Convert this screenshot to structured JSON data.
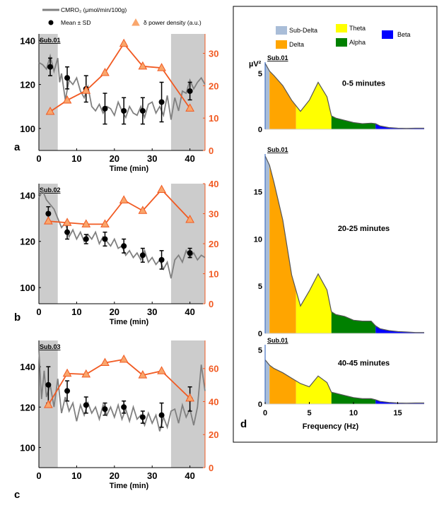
{
  "chart_data": [
    {
      "type": "line",
      "panel_label": "a",
      "subject": "Sub.01",
      "xlabel": "Time (min)",
      "xlim": [
        0,
        44
      ],
      "xticks": [
        0,
        10,
        20,
        30,
        40
      ],
      "ylim_left": [
        90,
        143
      ],
      "yticks_left": [
        100,
        120,
        140
      ],
      "ylim_right": [
        0,
        36
      ],
      "yticks_right": [
        0,
        10,
        20,
        30
      ],
      "shaded": [
        [
          0,
          5
        ],
        [
          35,
          44
        ]
      ],
      "cmro2_trace": [
        [
          0,
          130
        ],
        [
          1,
          129
        ],
        [
          2,
          127
        ],
        [
          3,
          133
        ],
        [
          4,
          126
        ],
        [
          5,
          132
        ],
        [
          5.5,
          121
        ],
        [
          6,
          125
        ],
        [
          7,
          113
        ],
        [
          8,
          122
        ],
        [
          9,
          120
        ],
        [
          10,
          123
        ],
        [
          11,
          117
        ],
        [
          12,
          114
        ],
        [
          13,
          119
        ],
        [
          14,
          110
        ],
        [
          15,
          108
        ],
        [
          16,
          111
        ],
        [
          17,
          107
        ],
        [
          18,
          110
        ],
        [
          19,
          109
        ],
        [
          20,
          106
        ],
        [
          21,
          112
        ],
        [
          22,
          108
        ],
        [
          23,
          105
        ],
        [
          24,
          110
        ],
        [
          25,
          107
        ],
        [
          26,
          106
        ],
        [
          27,
          110
        ],
        [
          28,
          105
        ],
        [
          29,
          111
        ],
        [
          30,
          112
        ],
        [
          31,
          107
        ],
        [
          32,
          110
        ],
        [
          33,
          106
        ],
        [
          34,
          115
        ],
        [
          35,
          104
        ],
        [
          36,
          114
        ],
        [
          37,
          108
        ],
        [
          38,
          117
        ],
        [
          39,
          116
        ],
        [
          40,
          122
        ],
        [
          41,
          118
        ],
        [
          42,
          121
        ],
        [
          43,
          123
        ],
        [
          44,
          120
        ]
      ],
      "mean_points": [
        {
          "x": 3,
          "y": 128,
          "sd": 4
        },
        {
          "x": 7.5,
          "y": 123,
          "sd": 5
        },
        {
          "x": 12.5,
          "y": 118,
          "sd": 6
        },
        {
          "x": 17.5,
          "y": 109,
          "sd": 7
        },
        {
          "x": 22.5,
          "y": 108,
          "sd": 6
        },
        {
          "x": 27.5,
          "y": 108,
          "sd": 6
        },
        {
          "x": 32.5,
          "y": 112,
          "sd": 9
        },
        {
          "x": 40,
          "y": 117,
          "sd": 4
        }
      ],
      "delta_power": [
        {
          "x": 3,
          "y": 12
        },
        {
          "x": 7.5,
          "y": 15.5
        },
        {
          "x": 12.5,
          "y": 18.5
        },
        {
          "x": 17.5,
          "y": 24
        },
        {
          "x": 22.5,
          "y": 33
        },
        {
          "x": 27.5,
          "y": 26
        },
        {
          "x": 32.5,
          "y": 25.5
        },
        {
          "x": 40,
          "y": 13
        }
      ]
    },
    {
      "type": "line",
      "panel_label": "b",
      "subject": "Sub.02",
      "xlabel": "Time (min)",
      "xlim": [
        0,
        44
      ],
      "xticks": [
        0,
        10,
        20,
        30,
        40
      ],
      "ylim_left": [
        93,
        145
      ],
      "yticks_left": [
        100,
        120,
        140
      ],
      "ylim_right": [
        0,
        40
      ],
      "yticks_right": [
        0,
        10,
        20,
        30,
        40
      ],
      "shaded": [
        [
          0,
          5
        ],
        [
          35,
          44
        ]
      ],
      "cmro2_trace": [
        [
          0,
          139
        ],
        [
          1,
          142
        ],
        [
          2,
          138
        ],
        [
          3,
          136
        ],
        [
          4,
          134
        ],
        [
          5,
          130
        ],
        [
          6,
          126
        ],
        [
          7,
          128
        ],
        [
          8,
          122
        ],
        [
          9,
          125
        ],
        [
          10,
          121
        ],
        [
          11,
          124
        ],
        [
          12,
          120
        ],
        [
          13,
          123
        ],
        [
          14,
          121
        ],
        [
          15,
          124
        ],
        [
          16,
          119
        ],
        [
          17,
          122
        ],
        [
          18,
          120
        ],
        [
          19,
          118
        ],
        [
          20,
          121
        ],
        [
          21,
          117
        ],
        [
          22,
          118
        ],
        [
          23,
          114
        ],
        [
          24,
          116
        ],
        [
          25,
          113
        ],
        [
          26,
          115
        ],
        [
          27,
          112
        ],
        [
          28,
          116
        ],
        [
          29,
          111
        ],
        [
          30,
          113
        ],
        [
          31,
          110
        ],
        [
          32,
          112
        ],
        [
          33,
          108
        ],
        [
          34,
          111
        ],
        [
          35,
          104
        ],
        [
          36,
          112
        ],
        [
          37,
          114
        ],
        [
          38,
          111
        ],
        [
          39,
          116
        ],
        [
          40,
          113
        ],
        [
          41,
          115
        ],
        [
          42,
          112
        ],
        [
          43,
          114
        ],
        [
          44,
          113
        ]
      ],
      "mean_points": [
        {
          "x": 2.5,
          "y": 132,
          "sd": 3
        },
        {
          "x": 7.5,
          "y": 124,
          "sd": 3
        },
        {
          "x": 12.5,
          "y": 121,
          "sd": 2
        },
        {
          "x": 17.5,
          "y": 121,
          "sd": 3
        },
        {
          "x": 22.5,
          "y": 118,
          "sd": 3
        },
        {
          "x": 27.5,
          "y": 114,
          "sd": 3
        },
        {
          "x": 32.5,
          "y": 112,
          "sd": 4
        },
        {
          "x": 40,
          "y": 115,
          "sd": 2
        }
      ],
      "delta_power": [
        {
          "x": 2.5,
          "y": 27.5
        },
        {
          "x": 7.5,
          "y": 27
        },
        {
          "x": 12.5,
          "y": 26.5
        },
        {
          "x": 17.5,
          "y": 26.5
        },
        {
          "x": 22.5,
          "y": 34.5
        },
        {
          "x": 27.5,
          "y": 31
        },
        {
          "x": 32.5,
          "y": 38
        },
        {
          "x": 40,
          "y": 28
        }
      ]
    },
    {
      "type": "line",
      "panel_label": "c",
      "subject": "Sub.03",
      "xlabel": "Time (min)",
      "xlim": [
        0,
        44
      ],
      "xticks": [
        0,
        10,
        20,
        30,
        40
      ],
      "ylim_left": [
        90,
        153
      ],
      "yticks_left": [
        100,
        120,
        140
      ],
      "ylim_right": [
        0,
        77
      ],
      "yticks_right": [
        0,
        20,
        40,
        60
      ],
      "shaded": [
        [
          0,
          5
        ],
        [
          35,
          44
        ]
      ],
      "cmro2_trace": [
        [
          0,
          148
        ],
        [
          0.7,
          124
        ],
        [
          1.4,
          138
        ],
        [
          2,
          125
        ],
        [
          3,
          131
        ],
        [
          4,
          120
        ],
        [
          5,
          134
        ],
        [
          6,
          117
        ],
        [
          7,
          125
        ],
        [
          8,
          118
        ],
        [
          9,
          122
        ],
        [
          10,
          113
        ],
        [
          11,
          121
        ],
        [
          12,
          116
        ],
        [
          13,
          122
        ],
        [
          14,
          117
        ],
        [
          15,
          120
        ],
        [
          16,
          114
        ],
        [
          17,
          121
        ],
        [
          18,
          116
        ],
        [
          19,
          120
        ],
        [
          20,
          115
        ],
        [
          21,
          121
        ],
        [
          22,
          114
        ],
        [
          23,
          119
        ],
        [
          24,
          113
        ],
        [
          25,
          120
        ],
        [
          26,
          114
        ],
        [
          27,
          116
        ],
        [
          28,
          111
        ],
        [
          29,
          117
        ],
        [
          30,
          112
        ],
        [
          31,
          116
        ],
        [
          32,
          108
        ],
        [
          33,
          115
        ],
        [
          34,
          110
        ],
        [
          35,
          118
        ],
        [
          36,
          119
        ],
        [
          37,
          112
        ],
        [
          38,
          121
        ],
        [
          39,
          115
        ],
        [
          40,
          119
        ],
        [
          41,
          111
        ],
        [
          42,
          120
        ],
        [
          43,
          141
        ],
        [
          44,
          128
        ]
      ],
      "mean_points": [
        {
          "x": 2.5,
          "y": 131,
          "sd": 9
        },
        {
          "x": 7.5,
          "y": 128,
          "sd": 5
        },
        {
          "x": 12.5,
          "y": 121,
          "sd": 4
        },
        {
          "x": 17.5,
          "y": 119,
          "sd": 3
        },
        {
          "x": 22.5,
          "y": 120,
          "sd": 3
        },
        {
          "x": 27.5,
          "y": 115,
          "sd": 3
        },
        {
          "x": 32.5,
          "y": 116,
          "sd": 6
        },
        {
          "x": 40,
          "y": 124,
          "sd": 6
        }
      ],
      "delta_power": [
        {
          "x": 2.5,
          "y": 38
        },
        {
          "x": 7.5,
          "y": 57
        },
        {
          "x": 12.5,
          "y": 56.5
        },
        {
          "x": 17.5,
          "y": 63.5
        },
        {
          "x": 22.5,
          "y": 65.5
        },
        {
          "x": 27.5,
          "y": 56
        },
        {
          "x": 32.5,
          "y": 58.5
        },
        {
          "x": 40,
          "y": 42
        }
      ]
    },
    {
      "type": "area",
      "panel_label": "d",
      "xlabel": "Frequency (Hz)",
      "ylabel": "µV²",
      "xlim": [
        0,
        18
      ],
      "xticks": [
        0,
        5,
        10,
        15
      ],
      "bands": [
        {
          "name": "Sub-Delta",
          "range": [
            0,
            0.5
          ],
          "color": "#a9bdd8"
        },
        {
          "name": "Delta",
          "range": [
            0.5,
            3.5
          ],
          "color": "#ffa500"
        },
        {
          "name": "Theta",
          "range": [
            3.5,
            7.5
          ],
          "color": "#ffff00"
        },
        {
          "name": "Alpha",
          "range": [
            7.5,
            12.5
          ],
          "color": "#008000"
        },
        {
          "name": "Beta",
          "range": [
            12.5,
            18
          ],
          "color": "#0000ff"
        }
      ],
      "spectra": [
        {
          "subject": "Sub.01",
          "window": "0-5 minutes",
          "ylim": [
            0,
            6
          ],
          "yticks": [
            0,
            5
          ],
          "points": [
            [
              0,
              5.9
            ],
            [
              0.5,
              5.2
            ],
            [
              1,
              4.8
            ],
            [
              2,
              3.9
            ],
            [
              3,
              2.6
            ],
            [
              4,
              1.6
            ],
            [
              5,
              2.6
            ],
            [
              6,
              4.2
            ],
            [
              7,
              2.9
            ],
            [
              7.5,
              1.2
            ],
            [
              8,
              1.0
            ],
            [
              9,
              0.8
            ],
            [
              10,
              0.6
            ],
            [
              11,
              0.5
            ],
            [
              12,
              0.55
            ],
            [
              12.5,
              0.5
            ],
            [
              13,
              0.3
            ],
            [
              14,
              0.15
            ],
            [
              15,
              0.1
            ],
            [
              16,
              0.08
            ],
            [
              17,
              0.1
            ],
            [
              18,
              0.1
            ]
          ]
        },
        {
          "subject": "Sub.01",
          "window": "20-25 minutes",
          "ylim": [
            0,
            19
          ],
          "yticks": [
            0,
            5,
            10,
            15
          ],
          "points": [
            [
              0,
              18.8
            ],
            [
              0.5,
              17.8
            ],
            [
              1,
              16
            ],
            [
              2,
              12
            ],
            [
              3,
              6.2
            ],
            [
              4,
              2.9
            ],
            [
              5,
              4.5
            ],
            [
              6,
              6.3
            ],
            [
              7,
              4.6
            ],
            [
              7.5,
              2.3
            ],
            [
              8,
              2.0
            ],
            [
              9,
              1.8
            ],
            [
              10,
              1.4
            ],
            [
              11,
              1.3
            ],
            [
              12,
              1.3
            ],
            [
              12.5,
              0.8
            ],
            [
              13,
              0.5
            ],
            [
              14,
              0.3
            ],
            [
              15,
              0.2
            ],
            [
              16,
              0.15
            ],
            [
              17,
              0.1
            ],
            [
              18,
              0.1
            ]
          ]
        },
        {
          "subject": "Sub.01",
          "window": "40-45 minutes",
          "ylim": [
            0,
            5.5
          ],
          "yticks": [
            0,
            5
          ],
          "points": [
            [
              0,
              4.1
            ],
            [
              0.5,
              3.6
            ],
            [
              1,
              3.3
            ],
            [
              2,
              2.9
            ],
            [
              3,
              2.4
            ],
            [
              4,
              1.9
            ],
            [
              5,
              1.6
            ],
            [
              6,
              2.6
            ],
            [
              7,
              2.0
            ],
            [
              7.5,
              1.1
            ],
            [
              8,
              1.0
            ],
            [
              9,
              0.8
            ],
            [
              10,
              0.6
            ],
            [
              11,
              0.5
            ],
            [
              12,
              0.5
            ],
            [
              12.5,
              0.4
            ],
            [
              13,
              0.25
            ],
            [
              14,
              0.15
            ],
            [
              15,
              0.1
            ],
            [
              16,
              0.08
            ],
            [
              17,
              0.1
            ],
            [
              18,
              0.1
            ]
          ]
        }
      ]
    }
  ],
  "legend": {
    "cmro2": "CMRO₂ (μmol/min/100g)",
    "mean": "Mean ± SD",
    "delta": "δ power density (a.u.)"
  },
  "colors": {
    "cmro2": "#808080",
    "mean": "#000000",
    "delta": "#f15a22",
    "shade": "#cccccc"
  }
}
